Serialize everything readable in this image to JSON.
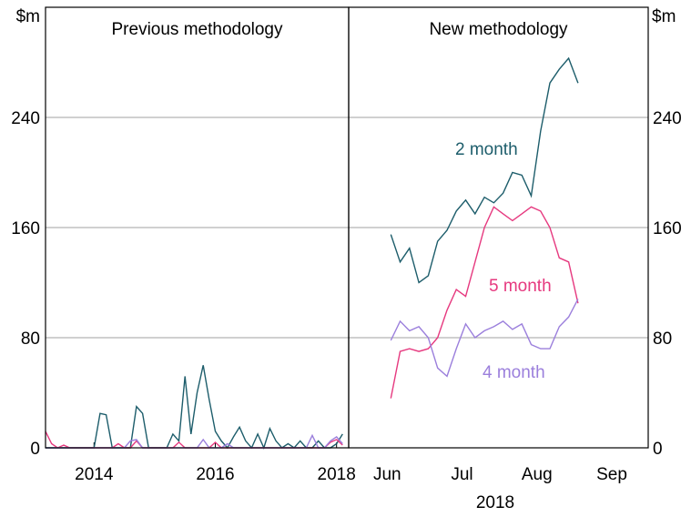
{
  "chart_data": [
    {
      "type": "line",
      "title": "Previous methodology",
      "ylabel": "$m",
      "y_axis_side": "left",
      "x": [
        2013.2,
        2013.3,
        2013.4,
        2013.5,
        2013.6,
        2013.7,
        2013.8,
        2013.9,
        2014.0,
        2014.1,
        2014.2,
        2014.3,
        2014.4,
        2014.5,
        2014.6,
        2014.7,
        2014.8,
        2014.9,
        2015.0,
        2015.1,
        2015.2,
        2015.3,
        2015.4,
        2015.5,
        2015.6,
        2015.7,
        2015.8,
        2015.9,
        2016.0,
        2016.1,
        2016.2,
        2016.3,
        2016.4,
        2016.5,
        2016.6,
        2016.7,
        2016.8,
        2016.9,
        2017.0,
        2017.1,
        2017.2,
        2017.3,
        2017.4,
        2017.5,
        2017.6,
        2017.7,
        2017.8,
        2017.9,
        2018.0,
        2018.1
      ],
      "series": [
        {
          "color": "#1d5d6b",
          "values": [
            0,
            0,
            0,
            0,
            0,
            0,
            0,
            0,
            0,
            25,
            24,
            0,
            0,
            0,
            0,
            30,
            25,
            0,
            0,
            0,
            0,
            10,
            5,
            52,
            10,
            40,
            60,
            35,
            12,
            5,
            0,
            8,
            15,
            5,
            0,
            10,
            0,
            14,
            5,
            0,
            3,
            0,
            5,
            0,
            0,
            5,
            0,
            0,
            3,
            10
          ]
        },
        {
          "color": "#e6397f",
          "values": [
            12,
            3,
            0,
            2,
            0,
            0,
            0,
            0,
            0,
            0,
            0,
            0,
            3,
            0,
            0,
            5,
            0,
            0,
            0,
            0,
            0,
            0,
            4,
            0,
            0,
            0,
            0,
            0,
            4,
            0,
            0,
            0,
            0,
            0,
            0,
            0,
            0,
            0,
            0,
            0,
            0,
            0,
            0,
            0,
            0,
            0,
            0,
            4,
            6,
            2
          ]
        },
        {
          "color": "#9b7fdc",
          "values": [
            0,
            0,
            0,
            0,
            0,
            0,
            0,
            0,
            0,
            0,
            0,
            0,
            0,
            0,
            5,
            6,
            0,
            0,
            0,
            0,
            0,
            0,
            0,
            0,
            0,
            0,
            6,
            0,
            0,
            0,
            3,
            0,
            0,
            0,
            0,
            0,
            0,
            0,
            0,
            0,
            0,
            0,
            0,
            0,
            9,
            0,
            0,
            5,
            8,
            3
          ]
        }
      ],
      "xlim": [
        2013.2,
        2018.2
      ],
      "xticks": [
        2014,
        2016,
        2018
      ],
      "ylim": [
        0,
        320
      ],
      "yticks": [
        0,
        80,
        160,
        240
      ],
      "grid": true
    },
    {
      "type": "line",
      "title": "New methodology",
      "ylabel": "$m",
      "y_axis_side": "right",
      "xlabel": "2018",
      "categories": [
        null,
        null,
        null,
        null,
        "Jun",
        null,
        null,
        null,
        null,
        null,
        null,
        null,
        "Jul",
        null,
        null,
        null,
        null,
        null,
        null,
        null,
        "Aug",
        null,
        null,
        null,
        null,
        null,
        null,
        null,
        "Sep",
        null,
        null,
        null
      ],
      "series": [
        {
          "name": "2 month",
          "color": "#1d5d6b",
          "values": [
            null,
            null,
            null,
            null,
            155,
            135,
            145,
            120,
            125,
            150,
            158,
            172,
            180,
            170,
            182,
            178,
            185,
            200,
            198,
            183,
            230,
            265,
            275,
            283,
            265,
            null,
            null,
            null,
            null,
            null,
            null,
            null
          ]
        },
        {
          "name": "5 month",
          "color": "#e6397f",
          "values": [
            null,
            null,
            null,
            null,
            36,
            70,
            72,
            70,
            72,
            80,
            100,
            115,
            110,
            135,
            160,
            175,
            170,
            165,
            170,
            175,
            172,
            160,
            138,
            135,
            105,
            null,
            null,
            null,
            null,
            null,
            null,
            null
          ]
        },
        {
          "name": "4 month",
          "color": "#9b7fdc",
          "values": [
            null,
            null,
            null,
            null,
            78,
            92,
            85,
            88,
            80,
            58,
            52,
            72,
            90,
            80,
            85,
            88,
            92,
            86,
            90,
            75,
            72,
            72,
            88,
            95,
            108,
            null,
            null,
            null,
            null,
            null,
            null,
            null
          ]
        }
      ],
      "ylim": [
        0,
        320
      ],
      "yticks": [
        0,
        80,
        160,
        240
      ],
      "grid": true
    }
  ]
}
